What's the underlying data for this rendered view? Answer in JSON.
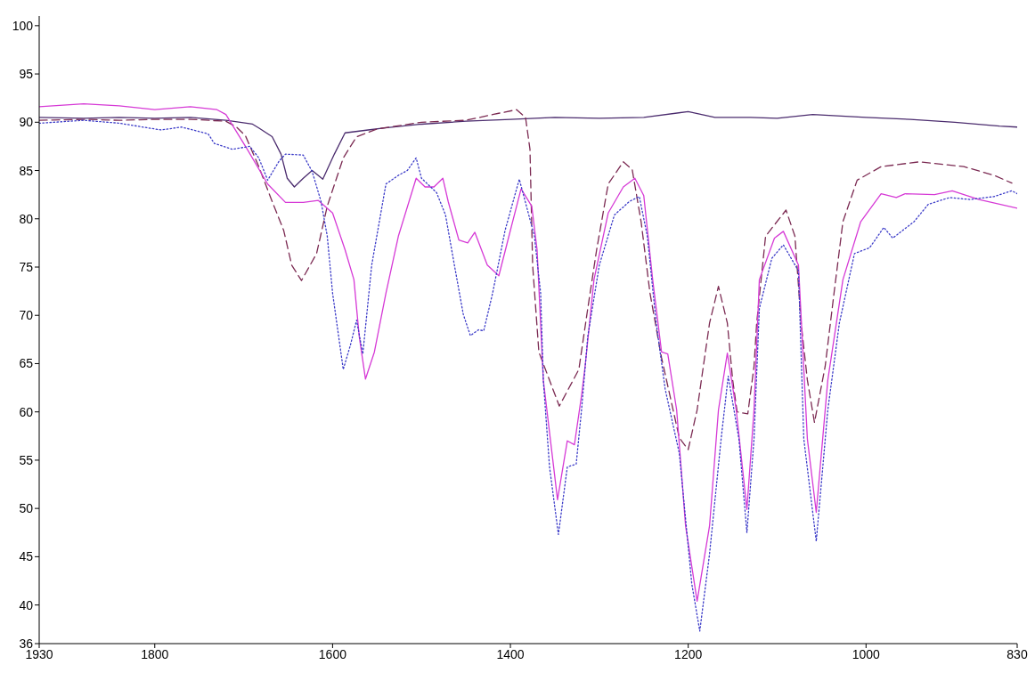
{
  "chart_data": {
    "type": "line",
    "xlim": [
      1930,
      830
    ],
    "xticks": [
      1930,
      1800,
      1600,
      1400,
      1200,
      1000,
      830
    ],
    "ylim": [
      36,
      101
    ],
    "yticks": [
      36,
      40,
      45,
      50,
      55,
      60,
      65,
      70,
      75,
      80,
      85,
      90,
      95,
      100
    ],
    "grid": false,
    "marker": "none",
    "series": [
      {
        "color": "#4b2c6e",
        "line_style": "solid",
        "x": [
          1930,
          1880,
          1840,
          1800,
          1760,
          1720,
          1690,
          1683,
          1668,
          1658,
          1651,
          1643,
          1633,
          1623,
          1611,
          1598,
          1586,
          1560,
          1543,
          1500,
          1450,
          1400,
          1350,
          1300,
          1250,
          1200,
          1170,
          1130,
          1100,
          1060,
          1000,
          950,
          900,
          850,
          830
        ],
        "values": [
          90.5,
          90.4,
          90.5,
          90.4,
          90.5,
          90.2,
          89.8,
          89.4,
          88.5,
          86.7,
          84.2,
          83.3,
          84.2,
          85,
          84.1,
          86.7,
          88.9,
          89.2,
          89.4,
          89.8,
          90.1,
          90.3,
          90.5,
          90.4,
          90.5,
          91.1,
          90.5,
          90.5,
          90.4,
          90.8,
          90.5,
          90.3,
          90,
          89.6,
          89.5
        ]
      },
      {
        "color": "#7b2a52",
        "line_style": "dashed",
        "x": [
          1930,
          1880,
          1840,
          1800,
          1760,
          1720,
          1708,
          1698,
          1683,
          1668,
          1655,
          1646,
          1635,
          1618,
          1606,
          1588,
          1573,
          1550,
          1500,
          1450,
          1420,
          1393,
          1383,
          1378,
          1375,
          1368,
          1345,
          1323,
          1313,
          1303,
          1290,
          1273,
          1263,
          1253,
          1243,
          1230,
          1210,
          1200,
          1190,
          1181,
          1176,
          1166,
          1156,
          1150,
          1145,
          1133,
          1126,
          1123,
          1113,
          1090,
          1080,
          1073,
          1066,
          1058,
          1046,
          1036,
          1026,
          1010,
          983,
          940,
          890,
          856,
          836
        ],
        "values": [
          90.2,
          90.3,
          90.2,
          90.3,
          90.3,
          90.1,
          89.5,
          88.6,
          85.4,
          81.8,
          78.8,
          75.2,
          73.6,
          76.4,
          81.3,
          86.3,
          88.5,
          89.3,
          90,
          90.2,
          90.8,
          91.3,
          90.5,
          87.2,
          75.2,
          66.2,
          60.6,
          64.4,
          70.7,
          76.8,
          83.6,
          85.9,
          85.1,
          79.7,
          72.3,
          65.6,
          57.3,
          56.1,
          60.2,
          66,
          69.2,
          73,
          69.2,
          63.3,
          60,
          59.8,
          64.7,
          69.2,
          78.2,
          80.9,
          78.2,
          69.2,
          63.3,
          58.9,
          64.7,
          72.3,
          79.7,
          84,
          85.4,
          85.9,
          85.4,
          84.5,
          83.7
        ]
      },
      {
        "color": "#d63ad6",
        "line_style": "solid",
        "x": [
          1930,
          1880,
          1840,
          1800,
          1760,
          1730,
          1720,
          1696,
          1673,
          1653,
          1633,
          1616,
          1600,
          1586,
          1576,
          1570,
          1563,
          1553,
          1540,
          1526,
          1506,
          1496,
          1486,
          1476,
          1470,
          1458,
          1448,
          1440,
          1426,
          1413,
          1400,
          1388,
          1376,
          1370,
          1363,
          1347,
          1336,
          1328,
          1320,
          1316,
          1306,
          1290,
          1273,
          1260,
          1250,
          1240,
          1230,
          1223,
          1213,
          1203,
          1190,
          1176,
          1166,
          1156,
          1146,
          1134,
          1126,
          1120,
          1103,
          1093,
          1076,
          1066,
          1056,
          1043,
          1026,
          1006,
          983,
          966,
          956,
          923,
          903,
          873,
          830
        ],
        "values": [
          91.6,
          91.9,
          91.7,
          91.3,
          91.6,
          91.3,
          90.8,
          87.2,
          83.6,
          81.7,
          81.7,
          81.9,
          80.6,
          76.8,
          73.7,
          67.8,
          63.4,
          66.2,
          72.3,
          78.2,
          84.2,
          83.3,
          83.3,
          84.2,
          81.8,
          77.8,
          77.5,
          78.6,
          75.2,
          74.1,
          78.8,
          83.1,
          81.3,
          76.8,
          63.3,
          50.9,
          57,
          56.6,
          61.7,
          64.7,
          73.7,
          80.6,
          83.3,
          84.2,
          82.4,
          73.7,
          66.2,
          66,
          60.2,
          48.2,
          40.4,
          48.2,
          60.2,
          66.1,
          60.2,
          49.9,
          60.2,
          73.7,
          78,
          78.7,
          75.2,
          57.2,
          49.6,
          63.3,
          73.7,
          79.7,
          82.6,
          82.2,
          82.6,
          82.5,
          82.9,
          82,
          81.1
        ]
      },
      {
        "color": "#3b3bc8",
        "line_style": "dotted",
        "x": [
          1930,
          1880,
          1840,
          1793,
          1770,
          1740,
          1733,
          1713,
          1693,
          1683,
          1673,
          1660,
          1653,
          1633,
          1623,
          1613,
          1606,
          1600,
          1588,
          1580,
          1573,
          1566,
          1556,
          1540,
          1526,
          1516,
          1506,
          1500,
          1483,
          1473,
          1463,
          1453,
          1445,
          1436,
          1430,
          1420,
          1406,
          1390,
          1373,
          1366,
          1363,
          1356,
          1346,
          1336,
          1326,
          1320,
          1313,
          1300,
          1283,
          1266,
          1255,
          1246,
          1236,
          1226,
          1210,
          1196,
          1187,
          1176,
          1163,
          1155,
          1143,
          1134,
          1126,
          1120,
          1106,
          1093,
          1076,
          1070,
          1056,
          1043,
          1030,
          1013,
          996,
          980,
          970,
          946,
          930,
          906,
          883,
          856,
          836,
          830
        ],
        "values": [
          89.9,
          90.2,
          89.9,
          89.2,
          89.5,
          88.8,
          87.8,
          87.2,
          87.5,
          86.3,
          84,
          86,
          86.7,
          86.6,
          84.9,
          81.8,
          78.2,
          72.3,
          64.4,
          66.9,
          69.5,
          66,
          75.2,
          83.6,
          84.5,
          85,
          86.3,
          84.2,
          82.7,
          80.4,
          75.2,
          70.1,
          67.9,
          68.5,
          68.4,
          72.3,
          78.8,
          84.1,
          78.2,
          72.3,
          63.3,
          54.3,
          47.3,
          54.3,
          54.6,
          60.2,
          67.8,
          75.2,
          80.4,
          81.8,
          82.3,
          78.2,
          69.2,
          62.4,
          55.7,
          42.2,
          37.3,
          45.3,
          57.2,
          63.7,
          57.2,
          47.5,
          57.2,
          70.7,
          75.9,
          77.3,
          74.6,
          57.2,
          46.6,
          60.2,
          69.2,
          76.4,
          77,
          79.1,
          78,
          79.7,
          81.5,
          82.2,
          82,
          82.3,
          82.9,
          82.6
        ]
      }
    ]
  }
}
